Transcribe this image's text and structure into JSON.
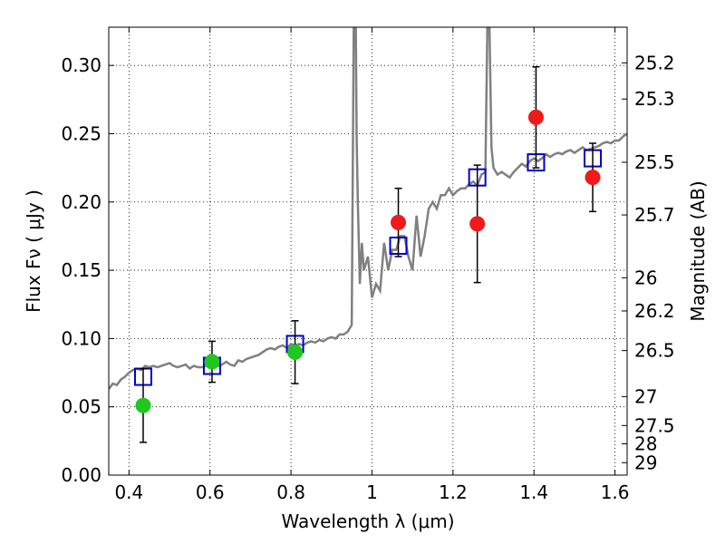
{
  "chart_data": {
    "type": "scatter",
    "title": "",
    "xlabel": "Wavelength  λ (μm)",
    "ylabel": "Flux  Fν  ( μJy )",
    "right_ylabel": "Magnitude (AB)",
    "xlim": [
      0.35,
      1.63
    ],
    "ylim": [
      0.0,
      0.328
    ],
    "grid": true,
    "x_ticks": [
      0.4,
      0.6,
      0.8,
      1.0,
      1.2,
      1.4,
      1.6
    ],
    "x_tick_labels": [
      "0.4",
      "0.6",
      "0.8",
      "1",
      "1.2",
      "1.4",
      "1.6"
    ],
    "y_ticks": [
      0.0,
      0.05,
      0.1,
      0.15,
      0.2,
      0.25,
      0.3
    ],
    "y_tick_labels": [
      "0.00",
      "0.05",
      "0.10",
      "0.15",
      "0.20",
      "0.25",
      "0.30"
    ],
    "right_ticks": [
      {
        "label": "25.2",
        "flux": 0.3019
      },
      {
        "label": "25.3",
        "flux": 0.2754
      },
      {
        "label": "25.5",
        "flux": 0.2291
      },
      {
        "label": "25.7",
        "flux": 0.1905
      },
      {
        "label": "26",
        "flux": 0.1445
      },
      {
        "label": "26.2",
        "flux": 0.1202
      },
      {
        "label": "26.5",
        "flux": 0.0912
      },
      {
        "label": "27",
        "flux": 0.0575
      },
      {
        "label": "27.5",
        "flux": 0.0363
      },
      {
        "label": "28",
        "flux": 0.0229
      },
      {
        "label": "29",
        "flux": 0.0091
      }
    ],
    "series": [
      {
        "kind": "line",
        "color": "#808080",
        "x": [
          0.35,
          0.36,
          0.37,
          0.38,
          0.39,
          0.4,
          0.41,
          0.42,
          0.43,
          0.44,
          0.45,
          0.46,
          0.47,
          0.48,
          0.49,
          0.5,
          0.51,
          0.52,
          0.53,
          0.54,
          0.55,
          0.56,
          0.57,
          0.58,
          0.59,
          0.6,
          0.61,
          0.62,
          0.63,
          0.64,
          0.65,
          0.66,
          0.67,
          0.68,
          0.69,
          0.7,
          0.71,
          0.72,
          0.73,
          0.74,
          0.75,
          0.76,
          0.77,
          0.78,
          0.79,
          0.8,
          0.81,
          0.82,
          0.83,
          0.84,
          0.85,
          0.86,
          0.87,
          0.88,
          0.89,
          0.9,
          0.91,
          0.92,
          0.93,
          0.94,
          0.95,
          0.955,
          0.96,
          0.962,
          0.965,
          0.97,
          0.975,
          0.98,
          0.99,
          1.0,
          1.01,
          1.02,
          1.03,
          1.04,
          1.05,
          1.06,
          1.07,
          1.08,
          1.09,
          1.1,
          1.11,
          1.12,
          1.13,
          1.14,
          1.15,
          1.16,
          1.17,
          1.18,
          1.19,
          1.2,
          1.21,
          1.22,
          1.23,
          1.24,
          1.25,
          1.26,
          1.27,
          1.28,
          1.285,
          1.29,
          1.295,
          1.3,
          1.31,
          1.32,
          1.33,
          1.34,
          1.35,
          1.36,
          1.37,
          1.38,
          1.39,
          1.4,
          1.41,
          1.42,
          1.43,
          1.44,
          1.45,
          1.46,
          1.47,
          1.48,
          1.49,
          1.5,
          1.51,
          1.52,
          1.53,
          1.54,
          1.55,
          1.56,
          1.57,
          1.58,
          1.59,
          1.6,
          1.61,
          1.62,
          1.63
        ],
        "y": [
          0.063,
          0.067,
          0.066,
          0.07,
          0.072,
          0.075,
          0.077,
          0.078,
          0.077,
          0.08,
          0.079,
          0.08,
          0.079,
          0.08,
          0.081,
          0.082,
          0.08,
          0.079,
          0.08,
          0.081,
          0.078,
          0.08,
          0.079,
          0.079,
          0.08,
          0.081,
          0.082,
          0.08,
          0.081,
          0.083,
          0.081,
          0.08,
          0.084,
          0.083,
          0.085,
          0.086,
          0.087,
          0.088,
          0.09,
          0.092,
          0.093,
          0.092,
          0.094,
          0.095,
          0.093,
          0.096,
          0.095,
          0.096,
          0.095,
          0.097,
          0.098,
          0.097,
          0.099,
          0.098,
          0.1,
          0.101,
          0.1,
          0.103,
          0.103,
          0.105,
          0.11,
          0.33,
          0.33,
          0.25,
          0.2,
          0.14,
          0.17,
          0.15,
          0.16,
          0.13,
          0.14,
          0.135,
          0.17,
          0.15,
          0.165,
          0.165,
          0.175,
          0.175,
          0.16,
          0.15,
          0.19,
          0.16,
          0.175,
          0.195,
          0.2,
          0.195,
          0.205,
          0.205,
          0.21,
          0.205,
          0.208,
          0.21,
          0.21,
          0.213,
          0.215,
          0.212,
          0.22,
          0.222,
          0.33,
          0.33,
          0.24,
          0.225,
          0.22,
          0.222,
          0.22,
          0.218,
          0.222,
          0.225,
          0.228,
          0.226,
          0.23,
          0.232,
          0.23,
          0.232,
          0.235,
          0.233,
          0.235,
          0.236,
          0.235,
          0.237,
          0.238,
          0.236,
          0.238,
          0.24,
          0.238,
          0.239,
          0.24,
          0.241,
          0.243,
          0.244,
          0.243,
          0.245,
          0.245,
          0.248,
          0.25
        ]
      },
      {
        "kind": "open-square",
        "color": "#0000cc",
        "x": [
          0.435,
          0.605,
          0.81,
          1.065,
          1.26,
          1.405,
          1.545
        ],
        "y": [
          0.072,
          0.08,
          0.096,
          0.168,
          0.218,
          0.229,
          0.232
        ]
      },
      {
        "kind": "filled-circle",
        "color": "#1ec81e",
        "x": [
          0.435,
          0.605,
          0.81
        ],
        "y": [
          0.051,
          0.083,
          0.09
        ],
        "yerr": [
          0.027,
          0.015,
          0.023
        ]
      },
      {
        "kind": "filled-circle",
        "color": "#f01a1a",
        "x": [
          1.065,
          1.26,
          1.405,
          1.545
        ],
        "y": [
          0.185,
          0.184,
          0.262,
          0.218
        ],
        "yerr": [
          0.025,
          0.043,
          0.037,
          0.025
        ]
      }
    ]
  }
}
